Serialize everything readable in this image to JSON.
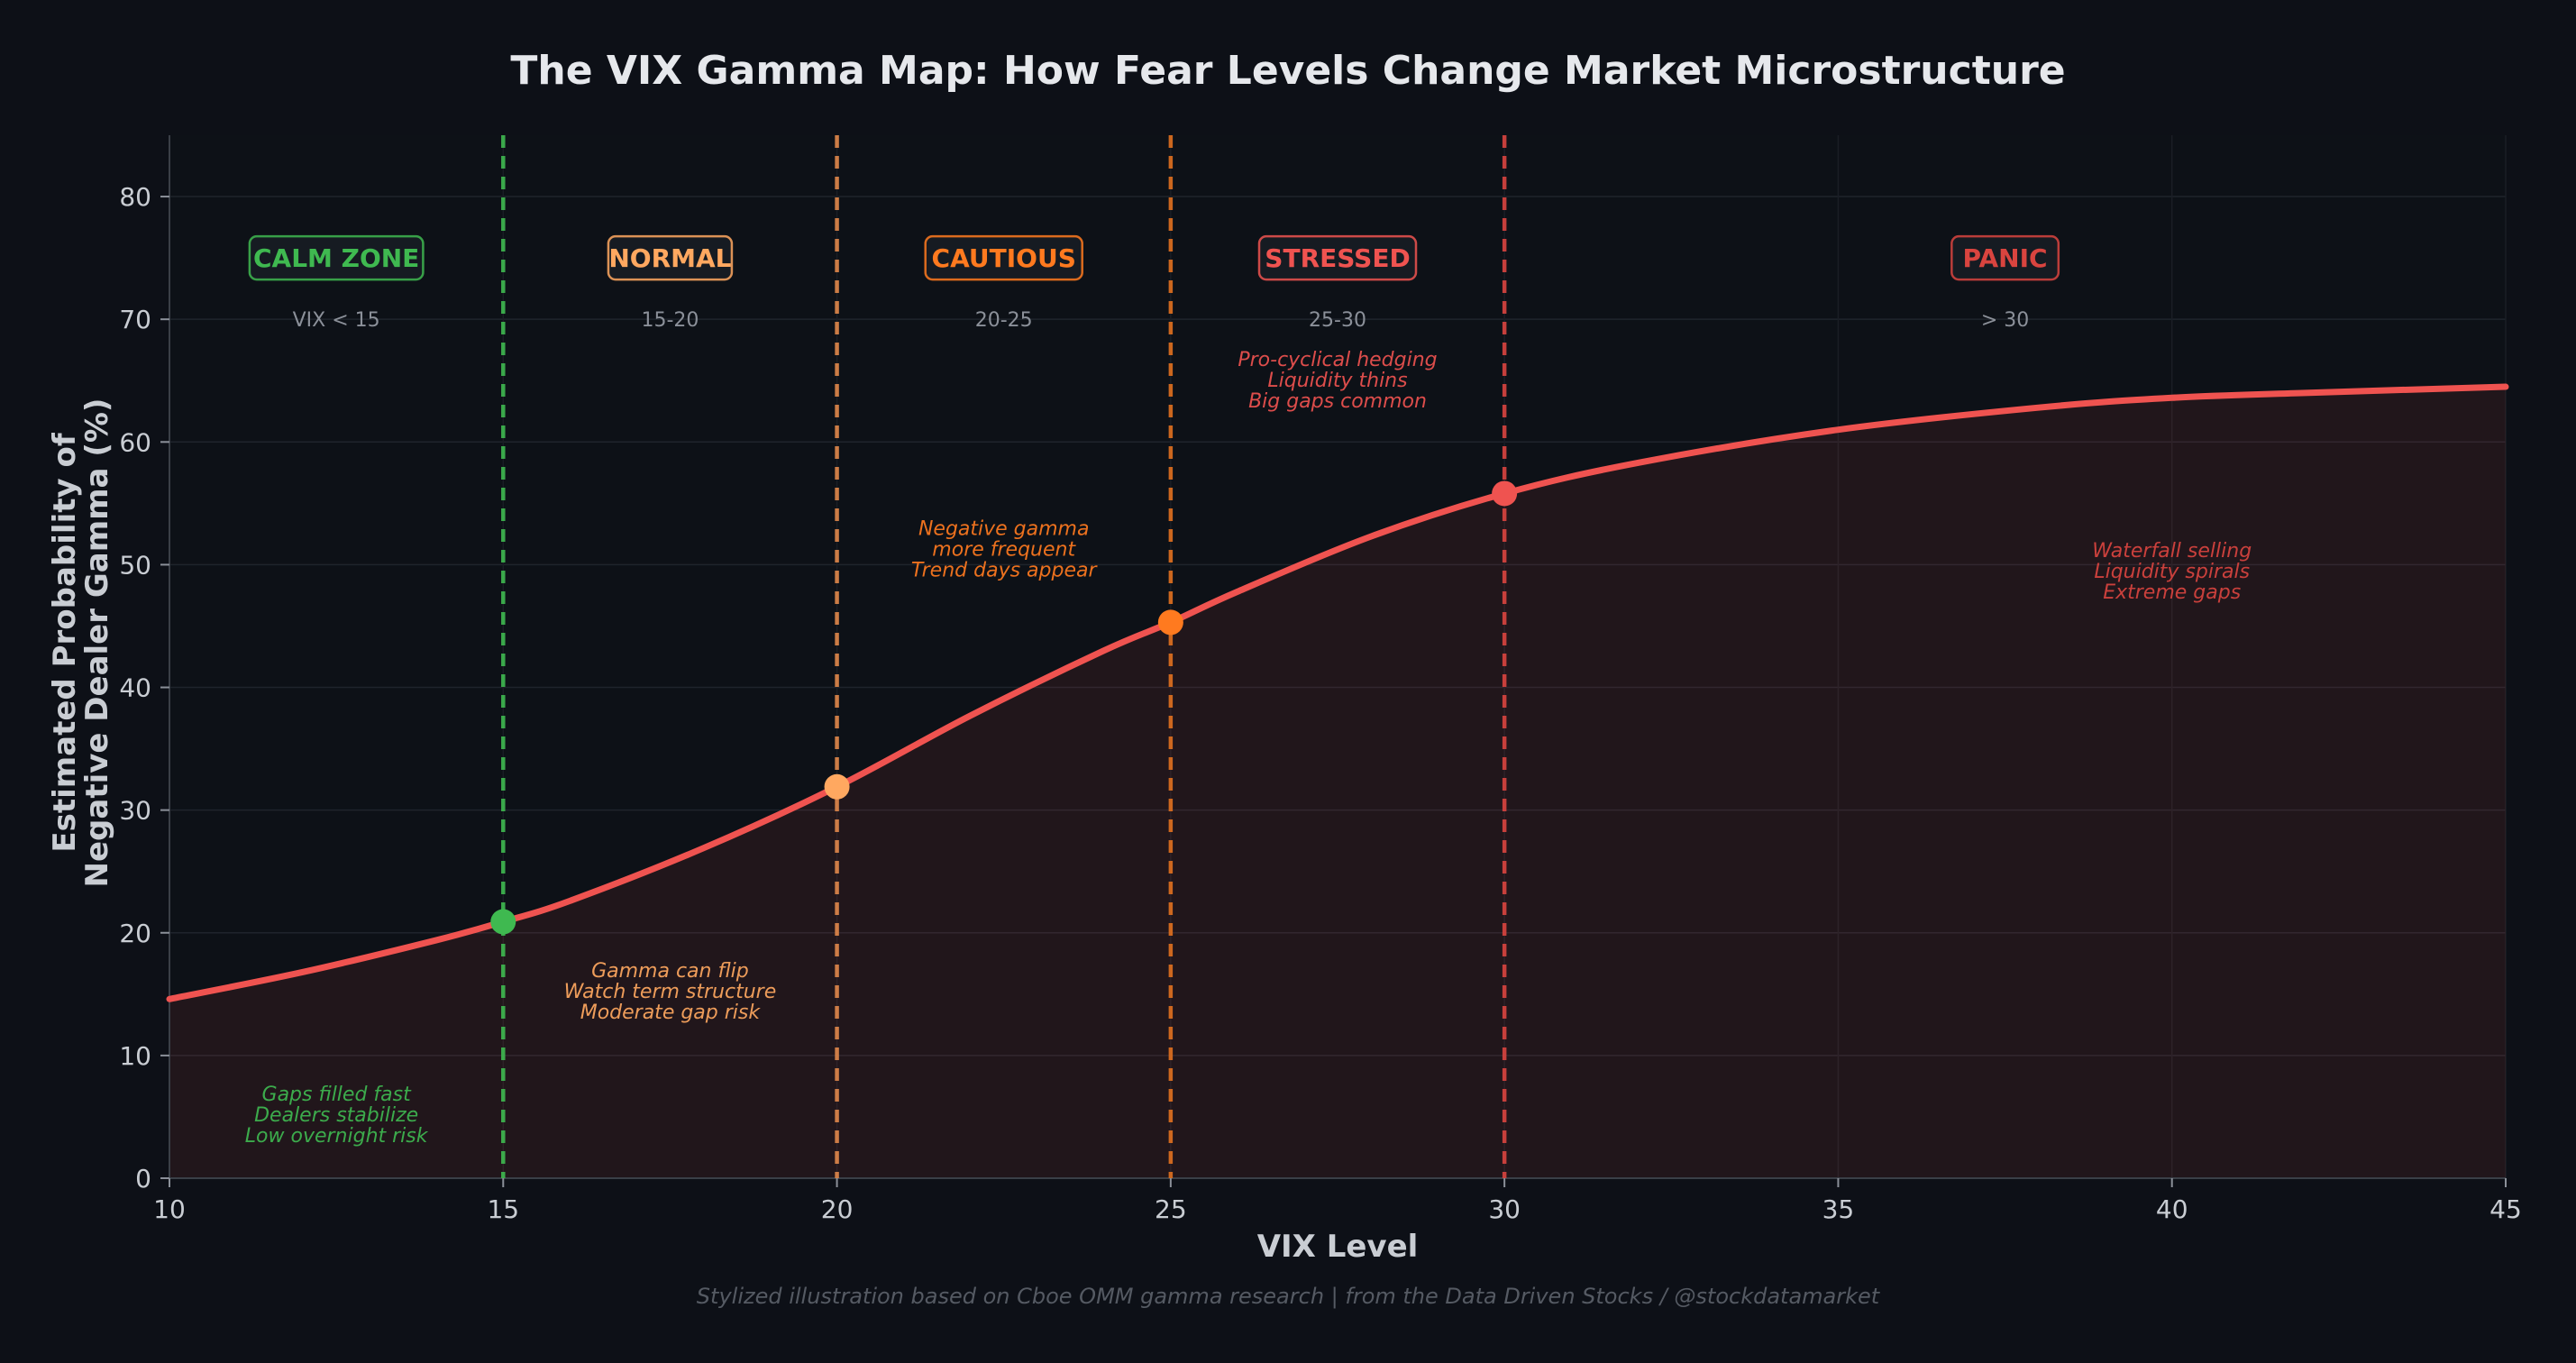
{
  "chart_data": {
    "type": "line",
    "title": "The VIX Gamma Map: How Fear Levels Change Market Microstructure",
    "xlabel": "VIX Level",
    "ylabel_line1": "Estimated Probability of",
    "ylabel_line2": "Negative Dealer Gamma (%)",
    "xlim": [
      10,
      45
    ],
    "ylim": [
      0,
      85
    ],
    "xticks": [
      10,
      15,
      20,
      25,
      30,
      35,
      40,
      45
    ],
    "yticks": [
      0,
      10,
      20,
      30,
      40,
      50,
      60,
      70,
      80
    ],
    "grid": true,
    "curve_color": "#ef5350",
    "series": [
      {
        "x": [
          10,
          12,
          14,
          15,
          16,
          18,
          20,
          22,
          24,
          25,
          26,
          28,
          30,
          32,
          35,
          38,
          40,
          42,
          45
        ],
        "y": [
          14.6,
          16.8,
          19.4,
          20.9,
          22.6,
          26.9,
          31.9,
          37.7,
          43.0,
          45.3,
          47.8,
          52.3,
          55.8,
          58.3,
          61.0,
          62.8,
          63.6,
          64.0,
          64.5
        ]
      }
    ],
    "markers": [
      {
        "x": 15,
        "y": 20.9,
        "color": "#3fb950"
      },
      {
        "x": 20,
        "y": 31.9,
        "color": "#ffa860"
      },
      {
        "x": 25,
        "y": 45.3,
        "color": "#ff7a1f"
      },
      {
        "x": 30,
        "y": 55.8,
        "color": "#ef5350"
      }
    ],
    "thresholds": [
      {
        "x": 15,
        "color": "#3fb950"
      },
      {
        "x": 20,
        "color": "#e0874a"
      },
      {
        "x": 25,
        "color": "#e0701f"
      },
      {
        "x": 30,
        "color": "#d9443f"
      }
    ],
    "zones": [
      {
        "label": "CALM ZONE",
        "range": "VIX < 15",
        "center": 12.5,
        "color": "#3fb950",
        "notes": [
          "Gaps filled fast",
          "Dealers stabilize",
          "Low overnight risk"
        ],
        "notes_y": 6.3,
        "notes_x": 12.5
      },
      {
        "label": "NORMAL",
        "range": "15-20",
        "center": 17.5,
        "color": "#ffa860",
        "notes": [
          "Gamma can flip",
          "Watch term structure",
          "Moderate gap risk"
        ],
        "notes_y": 16.4,
        "notes_x": 17.5
      },
      {
        "label": "CAUTIOUS",
        "range": "20-25",
        "center": 22.5,
        "color": "#ff7a1f",
        "notes": [
          "Negative gamma",
          "more frequent",
          "Trend days appear"
        ],
        "notes_y": 52.4,
        "notes_x": 22.5
      },
      {
        "label": "STRESSED",
        "range": "25-30",
        "center": 27.5,
        "color": "#ef5350",
        "notes": [
          "Pro-cyclical hedging",
          "Liquidity thins",
          "Big gaps common"
        ],
        "notes_y": 66.2,
        "notes_x": 27.5
      },
      {
        "label": "PANIC",
        "range": "> 30",
        "center": 37.5,
        "color": "#d9443f",
        "notes": [
          "Waterfall selling",
          "Liquidity spirals",
          "Extreme gaps"
        ],
        "notes_y": 50.6,
        "notes_x": 40
      }
    ],
    "footer": "Stylized illustration based on Cboe OMM gamma research | from the Data Driven Stocks / @stockdatamarket"
  }
}
